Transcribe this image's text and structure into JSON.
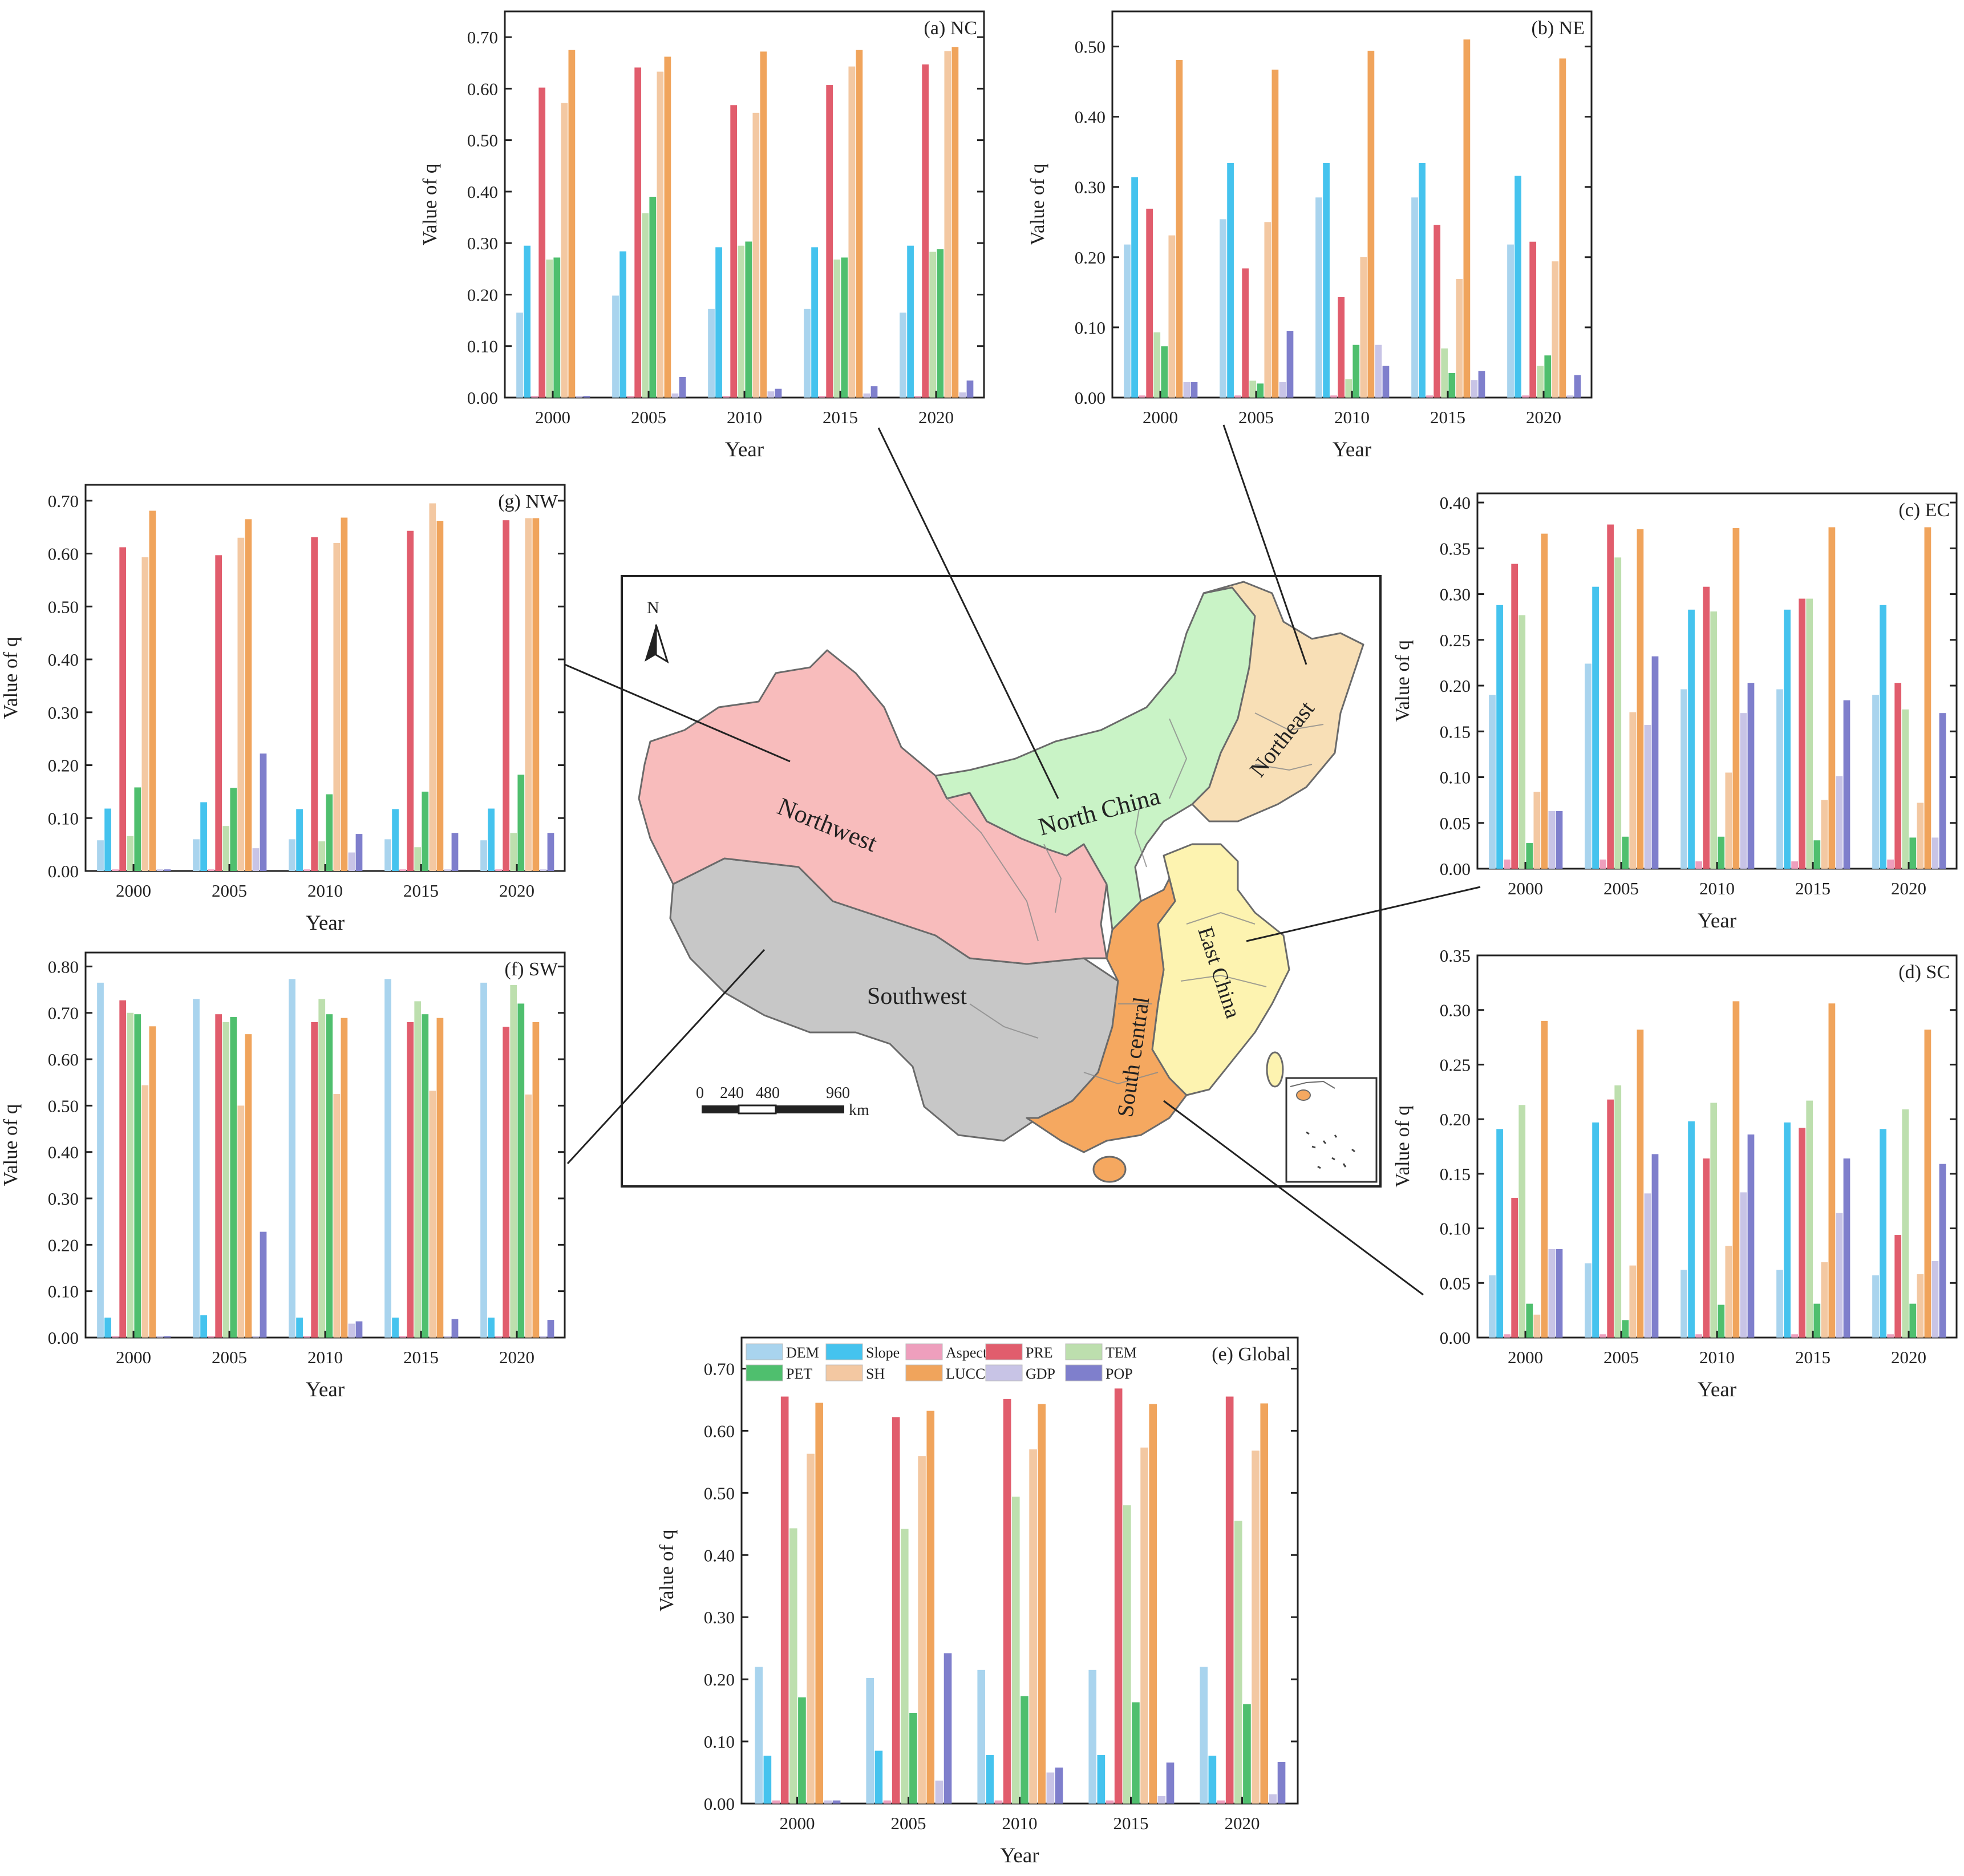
{
  "colors": {
    "DEM": "#a9d4ee",
    "Slope": "#45c3ee",
    "Aspect": "#ee9fbd",
    "PRE": "#e15d6d",
    "TEM": "#bddfae",
    "PET": "#4fbf6e",
    "SH": "#f3c8a2",
    "LUCC": "#f0a45c",
    "GDP": "#c8c4e6",
    "POP": "#7f7fcc",
    "northwest": "#f8bcbc",
    "north_china": "#c9f3c6",
    "northeast": "#f8dfb6",
    "east_china": "#fdf3b0",
    "south_central": "#f5a860",
    "southwest": "#c7c7c7"
  },
  "legend": {
    "items": [
      "DEM",
      "Slope",
      "Aspect",
      "PRE",
      "TEM",
      "PET",
      "SH",
      "LUCC",
      "GDP",
      "POP"
    ]
  },
  "map": {
    "north_label": "N",
    "regions": {
      "northwest": "Northwest",
      "north_china": "North China",
      "northeast": "Northeast",
      "east_china": "East China",
      "south_central": "South central",
      "southwest": "Southwest"
    },
    "scale": {
      "ticks": [
        "0",
        "240",
        "480",
        "960"
      ],
      "unit": "km"
    }
  },
  "chart_data": [
    {
      "id": "nc",
      "type": "bar",
      "title": "(a) NC",
      "xlabel": "Year",
      "ylabel": "Value of q",
      "ylim": [
        0,
        0.75
      ],
      "yticks": [
        "0.00",
        "0.10",
        "0.20",
        "0.30",
        "0.40",
        "0.50",
        "0.60",
        "0.70"
      ],
      "categories": [
        "2000",
        "2005",
        "2010",
        "2015",
        "2020"
      ],
      "series": [
        {
          "name": "DEM",
          "values": [
            0.165,
            0.198,
            0.172,
            0.172,
            0.165
          ]
        },
        {
          "name": "Slope",
          "values": [
            0.295,
            0.284,
            0.292,
            0.292,
            0.295
          ]
        },
        {
          "name": "Aspect",
          "values": [
            0.003,
            0.003,
            0.003,
            0.003,
            0.003
          ]
        },
        {
          "name": "PRE",
          "values": [
            0.602,
            0.641,
            0.568,
            0.607,
            0.647
          ]
        },
        {
          "name": "TEM",
          "values": [
            0.268,
            0.358,
            0.295,
            0.268,
            0.283
          ]
        },
        {
          "name": "PET",
          "values": [
            0.272,
            0.39,
            0.303,
            0.272,
            0.288
          ]
        },
        {
          "name": "SH",
          "values": [
            0.572,
            0.633,
            0.553,
            0.643,
            0.673
          ]
        },
        {
          "name": "LUCC",
          "values": [
            0.675,
            0.662,
            0.672,
            0.675,
            0.681
          ]
        },
        {
          "name": "GDP",
          "values": [
            0.003,
            0.008,
            0.012,
            0.008,
            0.01
          ]
        },
        {
          "name": "POP",
          "values": [
            0.003,
            0.04,
            0.017,
            0.022,
            0.033
          ]
        }
      ]
    },
    {
      "id": "ne",
      "type": "bar",
      "title": "(b) NE",
      "xlabel": "Year",
      "ylabel": "Value of q",
      "ylim": [
        0,
        0.55
      ],
      "yticks": [
        "0.00",
        "0.10",
        "0.20",
        "0.30",
        "0.40",
        "0.50"
      ],
      "categories": [
        "2000",
        "2005",
        "2010",
        "2015",
        "2020"
      ],
      "series": [
        {
          "name": "DEM",
          "values": [
            0.218,
            0.254,
            0.285,
            0.285,
            0.218
          ]
        },
        {
          "name": "Slope",
          "values": [
            0.314,
            0.334,
            0.334,
            0.334,
            0.316
          ]
        },
        {
          "name": "Aspect",
          "values": [
            0.003,
            0.003,
            0.003,
            0.003,
            0.003
          ]
        },
        {
          "name": "PRE",
          "values": [
            0.269,
            0.184,
            0.143,
            0.246,
            0.222
          ]
        },
        {
          "name": "TEM",
          "values": [
            0.093,
            0.024,
            0.026,
            0.07,
            0.045
          ]
        },
        {
          "name": "PET",
          "values": [
            0.073,
            0.02,
            0.075,
            0.035,
            0.06
          ]
        },
        {
          "name": "SH",
          "values": [
            0.231,
            0.25,
            0.2,
            0.169,
            0.194
          ]
        },
        {
          "name": "LUCC",
          "values": [
            0.481,
            0.467,
            0.494,
            0.51,
            0.483
          ]
        },
        {
          "name": "GDP",
          "values": [
            0.022,
            0.022,
            0.075,
            0.025,
            0.003
          ]
        },
        {
          "name": "POP",
          "values": [
            0.022,
            0.095,
            0.045,
            0.038,
            0.032
          ]
        }
      ]
    },
    {
      "id": "ec",
      "type": "bar",
      "title": "(c) EC",
      "xlabel": "Year",
      "ylabel": "Value of q",
      "ylim": [
        0,
        0.41
      ],
      "yticks": [
        "0.00",
        "0.05",
        "0.10",
        "0.15",
        "0.20",
        "0.25",
        "0.30",
        "0.35",
        "0.40"
      ],
      "categories": [
        "2000",
        "2005",
        "2010",
        "2015",
        "2020"
      ],
      "series": [
        {
          "name": "DEM",
          "values": [
            0.19,
            0.224,
            0.196,
            0.196,
            0.19
          ]
        },
        {
          "name": "Slope",
          "values": [
            0.288,
            0.308,
            0.283,
            0.283,
            0.288
          ]
        },
        {
          "name": "Aspect",
          "values": [
            0.01,
            0.01,
            0.008,
            0.008,
            0.01
          ]
        },
        {
          "name": "PRE",
          "values": [
            0.333,
            0.376,
            0.308,
            0.295,
            0.203
          ]
        },
        {
          "name": "TEM",
          "values": [
            0.277,
            0.34,
            0.281,
            0.295,
            0.174
          ]
        },
        {
          "name": "PET",
          "values": [
            0.028,
            0.035,
            0.035,
            0.031,
            0.034
          ]
        },
        {
          "name": "SH",
          "values": [
            0.084,
            0.171,
            0.105,
            0.075,
            0.072
          ]
        },
        {
          "name": "LUCC",
          "values": [
            0.366,
            0.371,
            0.372,
            0.373,
            0.373
          ]
        },
        {
          "name": "GDP",
          "values": [
            0.063,
            0.157,
            0.17,
            0.101,
            0.034
          ]
        },
        {
          "name": "POP",
          "values": [
            0.063,
            0.232,
            0.203,
            0.184,
            0.17
          ]
        }
      ]
    },
    {
      "id": "sc",
      "type": "bar",
      "title": "(d) SC",
      "xlabel": "Year",
      "ylabel": "Value of q",
      "ylim": [
        0,
        0.35
      ],
      "yticks": [
        "0.00",
        "0.05",
        "0.10",
        "0.15",
        "0.20",
        "0.25",
        "0.30",
        "0.35"
      ],
      "categories": [
        "2000",
        "2005",
        "2010",
        "2015",
        "2020"
      ],
      "series": [
        {
          "name": "DEM",
          "values": [
            0.057,
            0.068,
            0.062,
            0.062,
            0.057
          ]
        },
        {
          "name": "Slope",
          "values": [
            0.191,
            0.197,
            0.198,
            0.197,
            0.191
          ]
        },
        {
          "name": "Aspect",
          "values": [
            0.003,
            0.003,
            0.003,
            0.003,
            0.003
          ]
        },
        {
          "name": "PRE",
          "values": [
            0.128,
            0.218,
            0.164,
            0.192,
            0.094
          ]
        },
        {
          "name": "TEM",
          "values": [
            0.213,
            0.231,
            0.215,
            0.217,
            0.209
          ]
        },
        {
          "name": "PET",
          "values": [
            0.031,
            0.016,
            0.03,
            0.031,
            0.031
          ]
        },
        {
          "name": "SH",
          "values": [
            0.021,
            0.066,
            0.084,
            0.069,
            0.058
          ]
        },
        {
          "name": "LUCC",
          "values": [
            0.29,
            0.282,
            0.308,
            0.306,
            0.282
          ]
        },
        {
          "name": "GDP",
          "values": [
            0.081,
            0.132,
            0.133,
            0.114,
            0.07
          ]
        },
        {
          "name": "POP",
          "values": [
            0.081,
            0.168,
            0.186,
            0.164,
            0.159
          ]
        }
      ]
    },
    {
      "id": "global",
      "type": "bar",
      "title": "(e) Global",
      "xlabel": "Year",
      "ylabel": "Value of q",
      "ylim": [
        0,
        0.75
      ],
      "yticks": [
        "0.00",
        "0.10",
        "0.20",
        "0.30",
        "0.40",
        "0.50",
        "0.60",
        "0.70"
      ],
      "categories": [
        "2000",
        "2005",
        "2010",
        "2015",
        "2020"
      ],
      "series": [
        {
          "name": "DEM",
          "values": [
            0.22,
            0.202,
            0.215,
            0.215,
            0.22
          ]
        },
        {
          "name": "Slope",
          "values": [
            0.077,
            0.085,
            0.078,
            0.078,
            0.077
          ]
        },
        {
          "name": "Aspect",
          "values": [
            0.005,
            0.005,
            0.005,
            0.005,
            0.005
          ]
        },
        {
          "name": "PRE",
          "values": [
            0.655,
            0.622,
            0.651,
            0.668,
            0.655
          ]
        },
        {
          "name": "TEM",
          "values": [
            0.443,
            0.442,
            0.494,
            0.48,
            0.455
          ]
        },
        {
          "name": "PET",
          "values": [
            0.171,
            0.146,
            0.173,
            0.163,
            0.16
          ]
        },
        {
          "name": "SH",
          "values": [
            0.563,
            0.559,
            0.57,
            0.573,
            0.568
          ]
        },
        {
          "name": "LUCC",
          "values": [
            0.645,
            0.632,
            0.643,
            0.643,
            0.644
          ]
        },
        {
          "name": "GDP",
          "values": [
            0.005,
            0.037,
            0.05,
            0.012,
            0.015
          ]
        },
        {
          "name": "POP",
          "values": [
            0.005,
            0.242,
            0.058,
            0.066,
            0.067
          ]
        }
      ]
    },
    {
      "id": "sw",
      "type": "bar",
      "title": "(f) SW",
      "xlabel": "Year",
      "ylabel": "Value of q",
      "ylim": [
        0,
        0.83
      ],
      "yticks": [
        "0.00",
        "0.10",
        "0.20",
        "0.30",
        "0.40",
        "0.50",
        "0.60",
        "0.70",
        "0.80"
      ],
      "categories": [
        "2000",
        "2005",
        "2010",
        "2015",
        "2020"
      ],
      "series": [
        {
          "name": "DEM",
          "values": [
            0.765,
            0.73,
            0.773,
            0.773,
            0.765
          ]
        },
        {
          "name": "Slope",
          "values": [
            0.043,
            0.048,
            0.043,
            0.043,
            0.043
          ]
        },
        {
          "name": "Aspect",
          "values": [
            0.003,
            0.003,
            0.003,
            0.003,
            0.003
          ]
        },
        {
          "name": "PRE",
          "values": [
            0.727,
            0.697,
            0.68,
            0.68,
            0.67
          ]
        },
        {
          "name": "TEM",
          "values": [
            0.7,
            0.68,
            0.73,
            0.725,
            0.76
          ]
        },
        {
          "name": "PET",
          "values": [
            0.697,
            0.691,
            0.697,
            0.697,
            0.72
          ]
        },
        {
          "name": "SH",
          "values": [
            0.544,
            0.5,
            0.525,
            0.532,
            0.524
          ]
        },
        {
          "name": "LUCC",
          "values": [
            0.671,
            0.654,
            0.689,
            0.689,
            0.68
          ]
        },
        {
          "name": "GDP",
          "values": [
            0.003,
            0.003,
            0.03,
            0.003,
            0.003
          ]
        },
        {
          "name": "POP",
          "values": [
            0.003,
            0.228,
            0.035,
            0.04,
            0.038
          ]
        }
      ]
    },
    {
      "id": "nw",
      "type": "bar",
      "title": "(g) NW",
      "xlabel": "Year",
      "ylabel": "Value of q",
      "ylim": [
        0,
        0.73
      ],
      "yticks": [
        "0.00",
        "0.10",
        "0.20",
        "0.30",
        "0.40",
        "0.50",
        "0.60",
        "0.70"
      ],
      "categories": [
        "2000",
        "2005",
        "2010",
        "2015",
        "2020"
      ],
      "series": [
        {
          "name": "DEM",
          "values": [
            0.058,
            0.06,
            0.06,
            0.06,
            0.058
          ]
        },
        {
          "name": "Slope",
          "values": [
            0.118,
            0.13,
            0.117,
            0.117,
            0.118
          ]
        },
        {
          "name": "Aspect",
          "values": [
            0.003,
            0.003,
            0.003,
            0.003,
            0.003
          ]
        },
        {
          "name": "PRE",
          "values": [
            0.612,
            0.597,
            0.631,
            0.643,
            0.663
          ]
        },
        {
          "name": "TEM",
          "values": [
            0.066,
            0.085,
            0.056,
            0.045,
            0.072
          ]
        },
        {
          "name": "PET",
          "values": [
            0.158,
            0.157,
            0.145,
            0.15,
            0.182
          ]
        },
        {
          "name": "SH",
          "values": [
            0.593,
            0.63,
            0.62,
            0.695,
            0.667
          ]
        },
        {
          "name": "LUCC",
          "values": [
            0.681,
            0.665,
            0.668,
            0.662,
            0.667
          ]
        },
        {
          "name": "GDP",
          "values": [
            0.003,
            0.043,
            0.035,
            0.003,
            0.003
          ]
        },
        {
          "name": "POP",
          "values": [
            0.003,
            0.222,
            0.07,
            0.072,
            0.072
          ]
        }
      ]
    }
  ]
}
